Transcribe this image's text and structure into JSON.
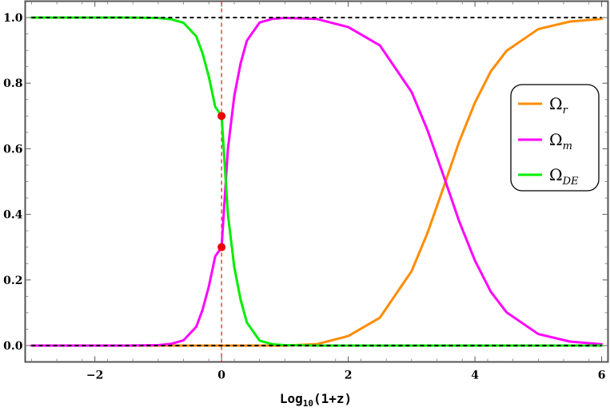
{
  "chart_data": {
    "type": "line",
    "xlabel": "Log",
    "xlabel_sub": "10",
    "xlabel_tail": "(1+z)",
    "xlim": [
      -3.1,
      6.1
    ],
    "ylim": [
      -0.05,
      1.05
    ],
    "x_ticks": [
      -2,
      0,
      2,
      4,
      6
    ],
    "x_tick_labels": [
      "−2",
      "0",
      "2",
      "4",
      "6"
    ],
    "y_ticks": [
      0.0,
      0.2,
      0.4,
      0.6,
      0.8,
      1.0
    ],
    "y_tick_labels": [
      "0.0",
      "0.2",
      "0.4",
      "0.6",
      "0.8",
      "1.0"
    ],
    "grid": false,
    "legend_position": "right",
    "x": [
      -3.0,
      -2.5,
      -2.0,
      -1.5,
      -1.0,
      -0.8,
      -0.6,
      -0.4,
      -0.3,
      -0.2,
      -0.1,
      0.0,
      0.1,
      0.2,
      0.3,
      0.4,
      0.6,
      0.8,
      1.0,
      1.5,
      2.0,
      2.5,
      3.0,
      3.25,
      3.5,
      3.75,
      4.0,
      4.25,
      4.5,
      5.0,
      5.5,
      6.0
    ],
    "series": [
      {
        "name": "Ω",
        "name_sub": "r",
        "color": "#ff8c00",
        "values": [
          0.0,
          0.0,
          0.0,
          0.0,
          0.0,
          0.0,
          0.0,
          0.0,
          0.0,
          0.0,
          0.0,
          0.0,
          0.0,
          0.0,
          0.0,
          0.0,
          0.0,
          0.0,
          0.0,
          0.004,
          0.029,
          0.085,
          0.227,
          0.343,
          0.48,
          0.621,
          0.741,
          0.836,
          0.899,
          0.965,
          0.988,
          0.996
        ]
      },
      {
        "name": "Ω",
        "name_sub": "m",
        "color": "#ff00ff",
        "values": [
          0.0,
          0.0,
          0.0,
          0.0,
          0.001,
          0.005,
          0.016,
          0.057,
          0.109,
          0.181,
          0.272,
          0.3,
          0.6,
          0.76,
          0.86,
          0.93,
          0.985,
          0.996,
          0.999,
          0.996,
          0.971,
          0.915,
          0.773,
          0.657,
          0.52,
          0.379,
          0.259,
          0.164,
          0.101,
          0.035,
          0.012,
          0.004
        ]
      },
      {
        "name": "Ω",
        "name_sub": "DE",
        "color": "#00ee00",
        "values": [
          1.0,
          1.0,
          1.0,
          1.0,
          0.999,
          0.995,
          0.984,
          0.943,
          0.891,
          0.819,
          0.728,
          0.7,
          0.4,
          0.24,
          0.14,
          0.07,
          0.015,
          0.004,
          0.001,
          0.0,
          0.0,
          0.0,
          0.0,
          0.0,
          0.0,
          0.0,
          0.0,
          0.0,
          0.0,
          0.0,
          0.0,
          0.0
        ]
      }
    ],
    "reference_lines": {
      "horizontal": [
        0.0,
        1.0
      ],
      "horizontal_color": "#000000",
      "vertical_x": 0.0,
      "vertical_color": "#ee2222"
    },
    "markers": [
      {
        "x": 0.0,
        "y": 0.7,
        "color": "#ee0000"
      },
      {
        "x": 0.0,
        "y": 0.3,
        "color": "#ee0000"
      }
    ]
  }
}
